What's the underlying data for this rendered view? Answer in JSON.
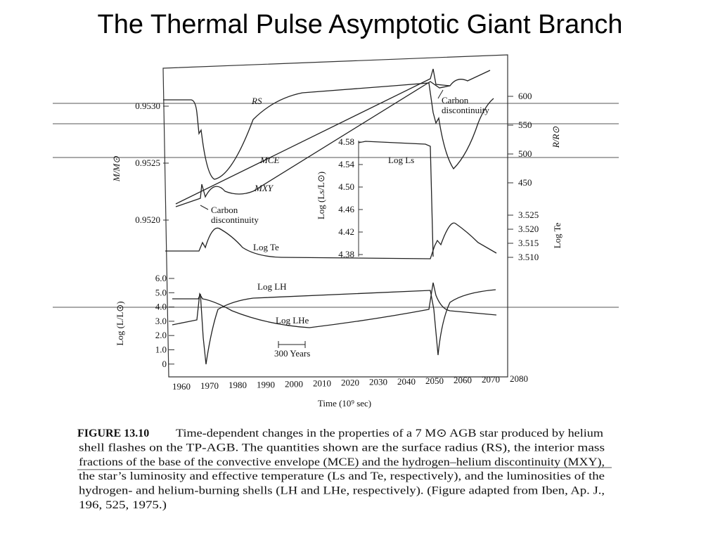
{
  "title": "The Thermal Pulse Asymptotic Giant Branch",
  "figure": {
    "left_axis_label": "M/M⊙",
    "left_ticks": [
      "0.9530",
      "0.9525",
      "0.9520"
    ],
    "right_axis_label_top": "R/R⊙",
    "right_ticks_top": [
      "600",
      "550",
      "500",
      "450"
    ],
    "right_axis_label_bottom": "Log Te",
    "right_ticks_bottom": [
      "3.525",
      "3.520",
      "3.515",
      "3.510"
    ],
    "lower_axis_label": "Log (L/L⊙)",
    "lower_ticks": [
      "6.0",
      "5.0",
      "4.0",
      "3.0",
      "2.0",
      "1.0",
      "0"
    ],
    "inset_axis_label": "Log (Ls/L⊙)",
    "inset_ticks": [
      "4.58",
      "4.54",
      "4.50",
      "4.46",
      "4.42",
      "4.38"
    ],
    "inset_curve_label": "Log Ls",
    "x_axis_label": "Time (10⁹ sec)",
    "x_ticks": [
      "1960",
      "1970",
      "1980",
      "1990",
      "2000",
      "2010",
      "2020",
      "2030",
      "2040",
      "2050",
      "2060",
      "2070",
      "2080"
    ],
    "curve_labels": {
      "rs": "RS",
      "mce": "MCE",
      "mxy": "MXY",
      "te": "Log Te",
      "lh": "Log LH",
      "lhe": "Log LHe"
    },
    "annotations": {
      "carbon_left_1": "Carbon",
      "carbon_left_2": "discontinuity",
      "carbon_right_1": "Carbon",
      "carbon_right_2": "discontinuity",
      "scale_bar": "300 Years"
    }
  },
  "caption": {
    "label": "FIGURE 13.10",
    "lines": [
      "Time-dependent changes in the properties of a 7 M⊙ AGB star produced by helium",
      "shell flashes on the TP-AGB. The quantities shown are the surface radius (RS), the interior mass",
      "fractions of the base of the convective envelope (MCE) and the hydrogen–helium discontinuity (MXY),",
      "the star’s luminosity and effective temperature (Ls and Te, respectively), and the luminosities of the",
      "hydrogen- and helium-burning shells (LH and LHe, respectively). (Figure adapted from Iben, Ap. J.,",
      "196, 525, 1975.)"
    ]
  }
}
